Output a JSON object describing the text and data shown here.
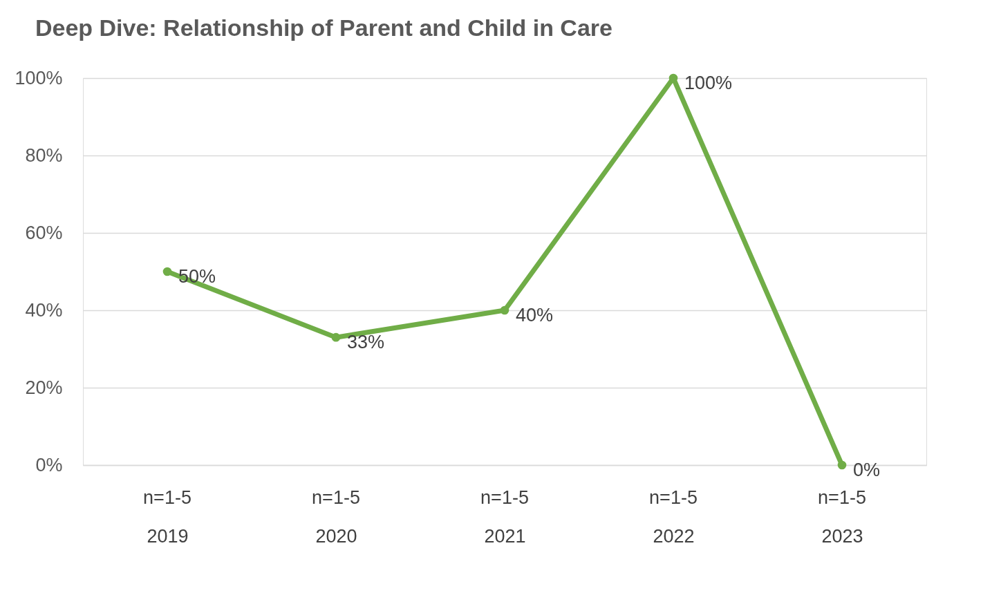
{
  "chart_data": {
    "type": "line",
    "title": "Deep Dive: Relationship of Parent and Child in Care",
    "categories": [
      "2019",
      "2020",
      "2021",
      "2022",
      "2023"
    ],
    "series": [
      {
        "color": "#70ad47",
        "values": [
          50,
          33,
          40,
          100,
          0
        ],
        "value_labels": [
          "50%",
          "33%",
          "40%",
          "100%",
          "0%"
        ]
      }
    ],
    "ylim": [
      0,
      100
    ],
    "yticks": [
      {
        "value": 0,
        "label": "0%"
      },
      {
        "value": 20,
        "label": "20%"
      },
      {
        "value": 40,
        "label": "40%"
      },
      {
        "value": 60,
        "label": "60%"
      },
      {
        "value": 80,
        "label": "80%"
      },
      {
        "value": 100,
        "label": "100%"
      }
    ],
    "grid": "y",
    "marker": "circle",
    "line_style": "solid",
    "annotations": [
      "n=1-5",
      "n=1-5",
      "n=1-5",
      "n=1-5",
      "n=1-5"
    ]
  }
}
